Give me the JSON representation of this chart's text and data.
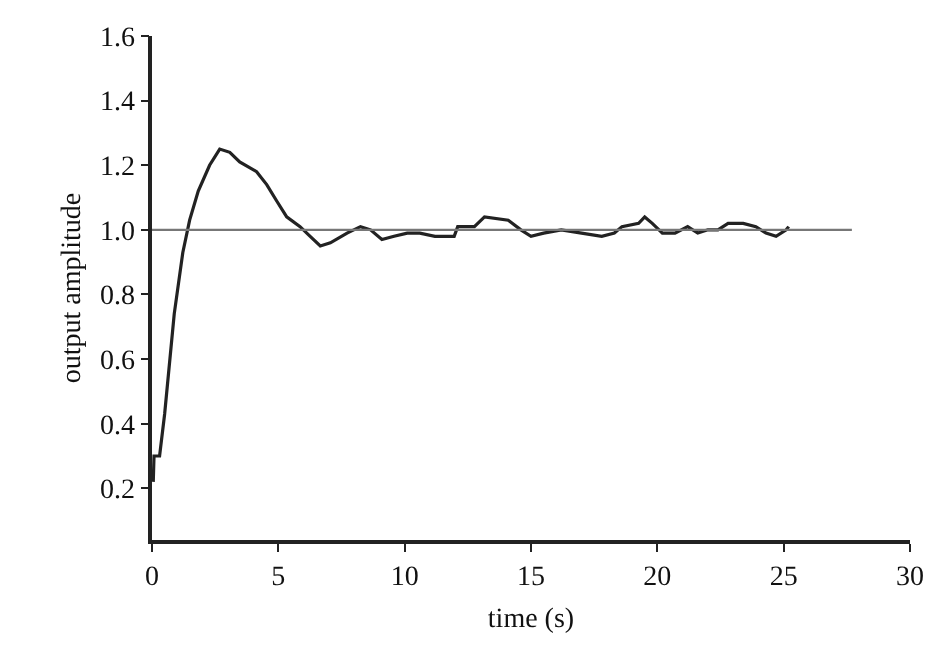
{
  "chart_data": {
    "type": "line",
    "xlabel": "time (s)",
    "ylabel": "output amplitude",
    "xlim": [
      0,
      30
    ],
    "xticks": [
      0,
      5,
      10,
      15,
      20,
      25,
      30
    ],
    "ylim": [
      0.04,
      1.6
    ],
    "yticks": [
      0.2,
      0.4,
      0.6,
      0.8,
      {
        "value": 1,
        "label": "1.0"
      },
      1.2,
      1.4,
      1.6
    ],
    "marker": "none",
    "line_style": "solid",
    "series": [
      {
        "color": "#222222",
        "x": [
          0.05,
          0.08,
          0.3,
          0.5,
          0.88,
          1.22,
          1.49,
          1.83,
          2.28,
          2.68,
          3.08,
          3.47,
          4.14,
          4.54,
          4.93,
          5.33,
          5.86,
          6.26,
          6.66,
          7.06,
          7.72,
          8.25,
          8.65,
          9.1,
          9.58,
          10.1,
          10.6,
          11.2,
          11.96,
          12.1,
          12.76,
          13.16,
          14.1,
          14.6,
          15.0,
          15.5,
          16.2,
          17.0,
          17.8,
          18.3,
          18.6,
          19.26,
          19.5,
          19.8,
          20.2,
          20.7,
          21.2,
          21.6,
          22.0,
          22.4,
          22.8,
          23.4,
          23.9,
          24.3,
          24.7,
          25.1,
          25.2
        ],
        "values": [
          0.22,
          0.3,
          0.3,
          0.43,
          0.74,
          0.93,
          1.03,
          1.12,
          1.2,
          1.25,
          1.24,
          1.21,
          1.18,
          1.14,
          1.09,
          1.04,
          1.01,
          0.98,
          0.95,
          0.96,
          0.99,
          1.01,
          1.0,
          0.97,
          0.98,
          0.99,
          0.99,
          0.98,
          0.98,
          1.01,
          1.01,
          1.04,
          1.03,
          1.0,
          0.98,
          0.99,
          1.0,
          0.99,
          0.98,
          0.99,
          1.01,
          1.02,
          1.04,
          1.02,
          0.99,
          0.99,
          1.01,
          0.99,
          1.0,
          1.0,
          1.02,
          1.02,
          1.01,
          0.99,
          0.98,
          1.0,
          1.01
        ]
      },
      {
        "color": "#777777",
        "x": [
          0,
          27.7
        ],
        "values": [
          1.0,
          1.0
        ]
      }
    ]
  }
}
